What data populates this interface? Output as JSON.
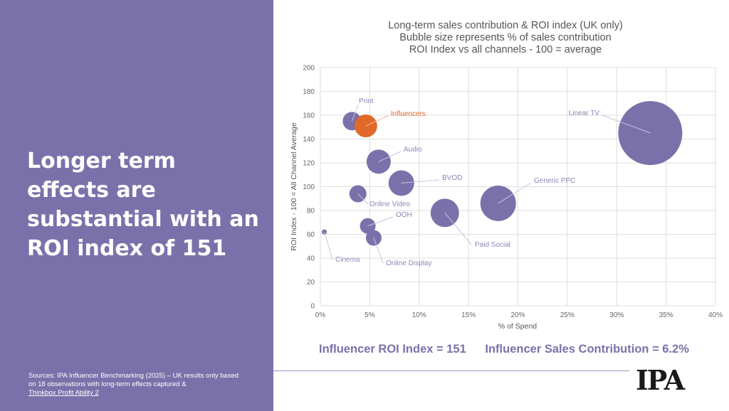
{
  "headline": "Longer term effects are substantial with an ROI index of 151",
  "sources": {
    "text": "Sources: IPA Influencer Benchmarking (2025) – UK results only based on 18 observations with long-term effects captured  &",
    "link": "Thinkbox Profit Ability 2"
  },
  "chart_title_lines": [
    "Long-term sales contribution & ROI index (UK only)",
    "Bubble size represents % of sales contribution",
    "ROI Index vs all channels - 100 = average"
  ],
  "stats": {
    "roi": "Influencer ROI Index = 151",
    "sales": "Influencer Sales Contribution = 6.2%"
  },
  "logo": "IPA",
  "colors": {
    "bubble": "#7b71aa",
    "highlight": "#e0692a",
    "label": "#8e86b8"
  },
  "chart_data": {
    "type": "scatter",
    "xlabel": "% of Spend",
    "ylabel": "ROI Index - 100 = All Channel Average",
    "xlim": [
      0,
      40
    ],
    "ylim": [
      0,
      200
    ],
    "x_ticks": [
      "0%",
      "5%",
      "10%",
      "15%",
      "20%",
      "25%",
      "30%",
      "35%",
      "40%"
    ],
    "y_ticks": [
      "0",
      "20",
      "40",
      "60",
      "80",
      "100",
      "120",
      "140",
      "160",
      "180",
      "200"
    ],
    "grid": true,
    "points": [
      {
        "name": "Print",
        "x": 3.2,
        "y": 155,
        "r": 13
      },
      {
        "name": "Influencers",
        "x": 4.6,
        "y": 151,
        "r": 16,
        "highlight": true
      },
      {
        "name": "Audio",
        "x": 5.9,
        "y": 121,
        "r": 17
      },
      {
        "name": "BVOD",
        "x": 8.2,
        "y": 103,
        "r": 18
      },
      {
        "name": "Online Video",
        "x": 3.8,
        "y": 94,
        "r": 12
      },
      {
        "name": "OOH",
        "x": 4.8,
        "y": 67,
        "r": 11
      },
      {
        "name": "Online Display",
        "x": 5.4,
        "y": 57,
        "r": 11
      },
      {
        "name": "Cinema",
        "x": 0.4,
        "y": 62,
        "r": 3.5
      },
      {
        "name": "Paid Social",
        "x": 12.6,
        "y": 78,
        "r": 20
      },
      {
        "name": "Generic PPC",
        "x": 18.0,
        "y": 86,
        "r": 25
      },
      {
        "name": "Linear TV",
        "x": 33.4,
        "y": 145,
        "r": 45
      }
    ]
  }
}
